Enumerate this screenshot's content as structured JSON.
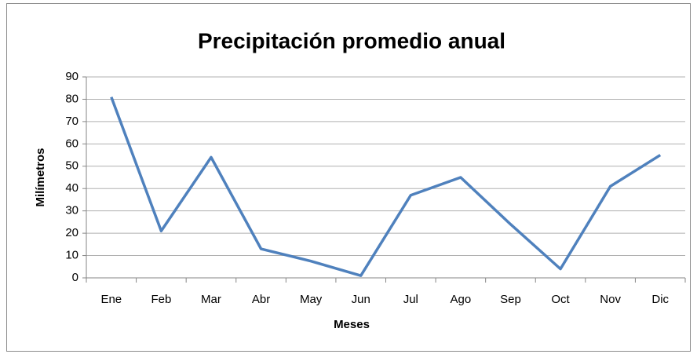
{
  "chart_data": {
    "type": "line",
    "title": "Precipitación promedio anual",
    "x_label": "Meses",
    "y_label": "Milímetros",
    "categories": [
      "Ene",
      "Feb",
      "Mar",
      "Abr",
      "May",
      "Jun",
      "Jul",
      "Ago",
      "Sep",
      "Oct",
      "Nov",
      "Dic"
    ],
    "values": [
      81,
      21,
      54,
      13,
      7.5,
      1,
      37,
      45,
      24,
      4,
      41,
      55
    ],
    "color": "#4f81bd",
    "ylim": [
      0,
      90
    ],
    "yticks": [
      0,
      10,
      20,
      30,
      40,
      50,
      60,
      70,
      80,
      90
    ],
    "grid": true
  }
}
